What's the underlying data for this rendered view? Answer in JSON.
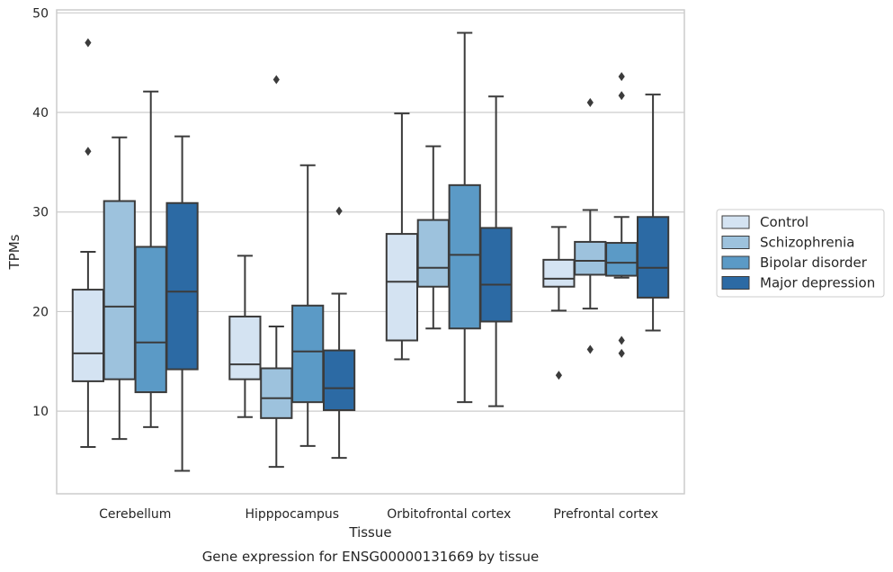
{
  "chart_data": {
    "type": "boxplot",
    "xlabel": "Tissue",
    "ylabel": "TPMs",
    "caption": "Gene expression for ENSG00000131669 by tissue",
    "ylim": [
      1.7,
      50.3
    ],
    "yticks": [
      10,
      20,
      30,
      40,
      50
    ],
    "grid": true,
    "legend_position": "right",
    "categories": [
      "Cerebellum",
      "Hipppocampus",
      "Orbitofrontal cortex",
      "Prefrontal cortex"
    ],
    "series": [
      {
        "name": "Control",
        "color": "#d4e3f2",
        "boxes": [
          {
            "whislo": 6.4,
            "q1": 13.0,
            "med": 15.8,
            "q3": 22.2,
            "whishi": 26.0,
            "fliers": [
              47.0,
              36.1
            ]
          },
          {
            "whislo": 9.4,
            "q1": 13.2,
            "med": 14.7,
            "q3": 19.5,
            "whishi": 25.6,
            "fliers": []
          },
          {
            "whislo": 15.2,
            "q1": 17.1,
            "med": 23.0,
            "q3": 27.8,
            "whishi": 39.9,
            "fliers": []
          },
          {
            "whislo": 20.1,
            "q1": 22.5,
            "med": 23.3,
            "q3": 25.2,
            "whishi": 28.5,
            "fliers": [
              13.6
            ]
          }
        ]
      },
      {
        "name": "Schizophrenia",
        "color": "#9dc2dd",
        "boxes": [
          {
            "whislo": 7.2,
            "q1": 13.2,
            "med": 20.5,
            "q3": 31.1,
            "whishi": 37.5,
            "fliers": []
          },
          {
            "whislo": 4.4,
            "q1": 9.3,
            "med": 11.3,
            "q3": 14.3,
            "whishi": 18.5,
            "fliers": [
              43.3
            ]
          },
          {
            "whislo": 18.3,
            "q1": 22.5,
            "med": 24.4,
            "q3": 29.2,
            "whishi": 36.6,
            "fliers": []
          },
          {
            "whislo": 20.3,
            "q1": 23.7,
            "med": 25.1,
            "q3": 27.0,
            "whishi": 30.2,
            "fliers": [
              41.0,
              16.2
            ]
          }
        ]
      },
      {
        "name": "Bipolar disorder",
        "color": "#5b9ac6",
        "boxes": [
          {
            "whislo": 8.4,
            "q1": 11.9,
            "med": 16.9,
            "q3": 26.5,
            "whishi": 42.1,
            "fliers": []
          },
          {
            "whislo": 6.5,
            "q1": 10.9,
            "med": 16.0,
            "q3": 20.6,
            "whishi": 34.7,
            "fliers": []
          },
          {
            "whislo": 10.9,
            "q1": 18.3,
            "med": 25.7,
            "q3": 32.7,
            "whishi": 48.0,
            "fliers": []
          },
          {
            "whislo": 23.4,
            "q1": 23.6,
            "med": 24.9,
            "q3": 26.9,
            "whishi": 29.5,
            "fliers": [
              43.6,
              41.7,
              17.1,
              15.8
            ]
          }
        ]
      },
      {
        "name": "Major depression",
        "color": "#2c6aa4",
        "boxes": [
          {
            "whislo": 4.0,
            "q1": 14.2,
            "med": 22.0,
            "q3": 30.9,
            "whishi": 37.6,
            "fliers": []
          },
          {
            "whislo": 5.3,
            "q1": 10.1,
            "med": 12.3,
            "q3": 16.1,
            "whishi": 21.8,
            "fliers": [
              30.1
            ]
          },
          {
            "whislo": 10.5,
            "q1": 19.0,
            "med": 22.7,
            "q3": 28.4,
            "whishi": 41.6,
            "fliers": []
          },
          {
            "whislo": 18.1,
            "q1": 21.4,
            "med": 24.4,
            "q3": 29.5,
            "whishi": 41.8,
            "fliers": []
          }
        ]
      }
    ]
  }
}
